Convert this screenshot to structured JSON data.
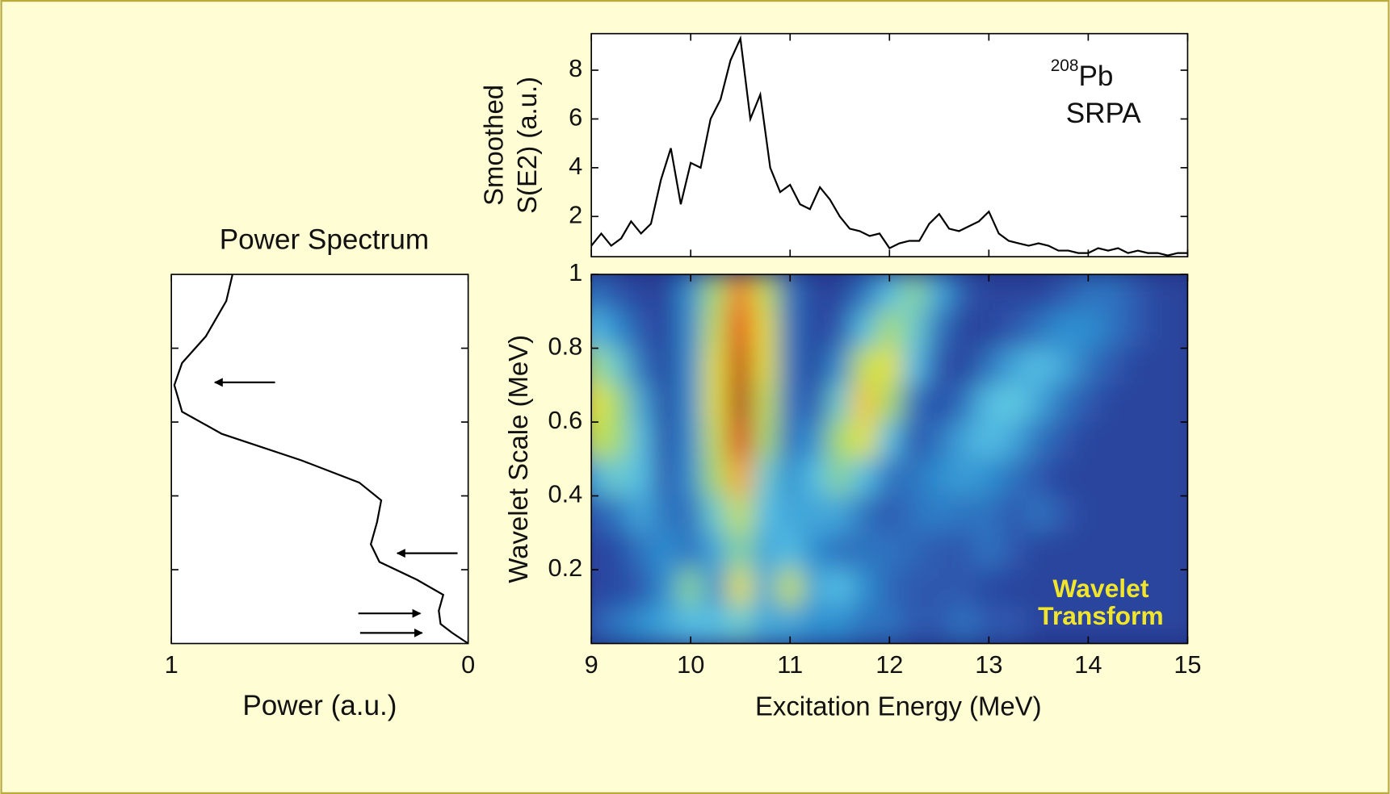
{
  "chart_data": [
    {
      "type": "line",
      "ylabel": [
        "Smoothed",
        "S(E2) (a.u.)"
      ],
      "label": {
        "mass": "208",
        "element": "Pb",
        "method": "SRPA"
      },
      "x": [
        9.0,
        9.1,
        9.2,
        9.3,
        9.4,
        9.5,
        9.6,
        9.7,
        9.8,
        9.9,
        10.0,
        10.1,
        10.2,
        10.3,
        10.4,
        10.5,
        10.6,
        10.7,
        10.8,
        10.9,
        11.0,
        11.1,
        11.2,
        11.3,
        11.4,
        11.5,
        11.6,
        11.7,
        11.8,
        11.9,
        12.0,
        12.1,
        12.2,
        12.3,
        12.4,
        12.5,
        12.6,
        12.7,
        12.8,
        12.9,
        13.0,
        13.1,
        13.2,
        13.3,
        13.4,
        13.5,
        13.6,
        13.7,
        13.8,
        13.9,
        14.0,
        14.1,
        14.2,
        14.3,
        14.4,
        14.5,
        14.6,
        14.7,
        14.8,
        14.9,
        15.0
      ],
      "values": [
        0.8,
        1.3,
        0.8,
        1.1,
        1.8,
        1.3,
        1.7,
        3.5,
        4.8,
        2.5,
        4.2,
        4.0,
        6.0,
        6.8,
        8.4,
        9.3,
        6.0,
        7.0,
        4.0,
        3.0,
        3.3,
        2.5,
        2.3,
        3.2,
        2.7,
        2.0,
        1.5,
        1.4,
        1.2,
        1.3,
        0.7,
        0.9,
        1.0,
        1.0,
        1.7,
        2.1,
        1.5,
        1.4,
        1.6,
        1.8,
        2.2,
        1.3,
        1.0,
        0.9,
        0.8,
        0.9,
        0.8,
        0.6,
        0.6,
        0.5,
        0.5,
        0.7,
        0.6,
        0.7,
        0.5,
        0.6,
        0.5,
        0.5,
        0.4,
        0.5,
        0.5
      ],
      "color": "#000000",
      "xlim": [
        9,
        15
      ],
      "xticks": [
        9,
        10,
        11,
        12,
        13,
        14,
        15
      ],
      "xtick_labels": false,
      "ylim": [
        0.35,
        9.5
      ],
      "yticks": [
        2,
        4,
        6,
        8
      ]
    },
    {
      "type": "heatmap",
      "xlabel": "Excitation Energy (MeV)",
      "ylabel": "Wavelet Scale (MeV)",
      "annotation": [
        "Wavelet",
        "Transform"
      ],
      "annotation_color": "#f2e62c",
      "x": [
        9,
        9.25,
        9.5,
        9.75,
        10,
        10.25,
        10.5,
        10.75,
        11,
        11.25,
        11.5,
        11.75,
        12,
        12.25,
        12.5,
        12.75,
        13,
        13.25,
        13.5,
        13.75,
        14,
        14.25,
        14.5,
        14.75,
        15
      ],
      "y": [
        0.95,
        0.85,
        0.75,
        0.65,
        0.55,
        0.45,
        0.35,
        0.25,
        0.15,
        0.05
      ],
      "z": [
        [
          0.2,
          0.15,
          0.1,
          0.1,
          0.25,
          0.5,
          0.8,
          0.55,
          0.2,
          0.1,
          0.1,
          0.2,
          0.35,
          0.45,
          0.3,
          0.15,
          0.1,
          0.1,
          0.1,
          0.15,
          0.2,
          0.2,
          0.15,
          0.1,
          0.1
        ],
        [
          0.35,
          0.25,
          0.15,
          0.1,
          0.25,
          0.55,
          0.88,
          0.6,
          0.2,
          0.1,
          0.15,
          0.35,
          0.5,
          0.4,
          0.2,
          0.1,
          0.1,
          0.15,
          0.2,
          0.25,
          0.25,
          0.2,
          0.15,
          0.1,
          0.1
        ],
        [
          0.5,
          0.4,
          0.2,
          0.1,
          0.25,
          0.6,
          0.95,
          0.6,
          0.2,
          0.1,
          0.25,
          0.55,
          0.6,
          0.35,
          0.15,
          0.1,
          0.2,
          0.3,
          0.35,
          0.3,
          0.2,
          0.15,
          0.1,
          0.1,
          0.1
        ],
        [
          0.62,
          0.5,
          0.3,
          0.1,
          0.25,
          0.6,
          0.98,
          0.55,
          0.2,
          0.15,
          0.4,
          0.68,
          0.5,
          0.2,
          0.12,
          0.2,
          0.35,
          0.38,
          0.3,
          0.2,
          0.15,
          0.1,
          0.1,
          0.1,
          0.1
        ],
        [
          0.55,
          0.5,
          0.35,
          0.12,
          0.25,
          0.55,
          0.9,
          0.5,
          0.2,
          0.25,
          0.5,
          0.6,
          0.35,
          0.15,
          0.2,
          0.3,
          0.35,
          0.3,
          0.2,
          0.15,
          0.1,
          0.1,
          0.1,
          0.1,
          0.1
        ],
        [
          0.3,
          0.4,
          0.35,
          0.15,
          0.25,
          0.5,
          0.75,
          0.4,
          0.25,
          0.35,
          0.45,
          0.35,
          0.2,
          0.2,
          0.25,
          0.28,
          0.25,
          0.2,
          0.15,
          0.1,
          0.1,
          0.1,
          0.1,
          0.1,
          0.1
        ],
        [
          0.15,
          0.2,
          0.3,
          0.2,
          0.2,
          0.4,
          0.55,
          0.35,
          0.3,
          0.3,
          0.3,
          0.2,
          0.15,
          0.2,
          0.22,
          0.2,
          0.2,
          0.15,
          0.2,
          0.15,
          0.1,
          0.1,
          0.1,
          0.1,
          0.1
        ],
        [
          0.1,
          0.12,
          0.2,
          0.25,
          0.2,
          0.3,
          0.45,
          0.3,
          0.35,
          0.25,
          0.2,
          0.2,
          0.2,
          0.18,
          0.15,
          0.15,
          0.2,
          0.15,
          0.1,
          0.1,
          0.1,
          0.1,
          0.1,
          0.1,
          0.1
        ],
        [
          0.1,
          0.12,
          0.15,
          0.25,
          0.45,
          0.25,
          0.6,
          0.3,
          0.55,
          0.3,
          0.35,
          0.25,
          0.18,
          0.15,
          0.15,
          0.15,
          0.12,
          0.1,
          0.1,
          0.1,
          0.1,
          0.1,
          0.1,
          0.1,
          0.1
        ],
        [
          0.15,
          0.2,
          0.25,
          0.3,
          0.35,
          0.35,
          0.4,
          0.3,
          0.3,
          0.25,
          0.25,
          0.2,
          0.2,
          0.15,
          0.15,
          0.2,
          0.15,
          0.15,
          0.1,
          0.1,
          0.1,
          0.1,
          0.1,
          0.1,
          0.1
        ]
      ],
      "colorscale": [
        "#1d2a78",
        "#2c4aa6",
        "#2f8fd0",
        "#5ec8e6",
        "#a8dc6a",
        "#f2e32a",
        "#f5a623",
        "#e8391e",
        "#a3121a"
      ],
      "xlim": [
        9,
        15
      ],
      "xticks": [
        9,
        10,
        11,
        12,
        13,
        14,
        15
      ],
      "ylim": [
        0,
        1
      ],
      "yticks": [
        0.2,
        0.4,
        0.6,
        0.8,
        1
      ]
    },
    {
      "type": "line",
      "orientation": "horizontal",
      "title": "Power Spectrum",
      "xlabel": "Power (a.u.)",
      "y": [
        1.0,
        0.928,
        0.832,
        0.76,
        0.7,
        0.628,
        0.568,
        0.496,
        0.436,
        0.388,
        0.329,
        0.269,
        0.221,
        0.173,
        0.132,
        0.089,
        0.053,
        0.029,
        0
      ],
      "values": [
        0.794,
        0.815,
        0.884,
        0.964,
        0.99,
        0.964,
        0.83,
        0.561,
        0.367,
        0.293,
        0.307,
        0.328,
        0.299,
        0.173,
        0.084,
        0.099,
        0.093,
        0.054,
        0
      ],
      "color": "#000000",
      "xlim": [
        1,
        0
      ],
      "xticks": [
        1,
        0
      ],
      "ylim": [
        0,
        1
      ],
      "yticks": [
        0.2,
        0.4,
        0.6,
        0.8
      ],
      "ytick_labels": false
    }
  ]
}
